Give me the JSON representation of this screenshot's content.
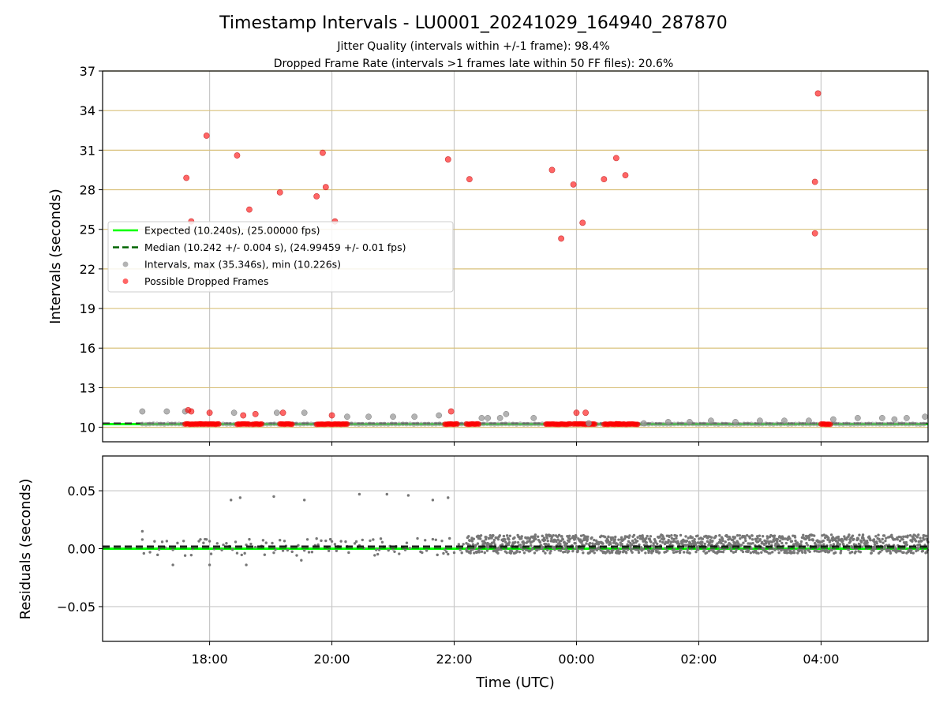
{
  "figure": {
    "title": "Timestamp Intervals - LU0001_20241029_164940_287870",
    "subtitle_1": "Jitter Quality (intervals within +/-1 frame): 98.4%",
    "subtitle_2": "Dropped Frame Rate (intervals >1 frames late within 50 FF files): 20.6%"
  },
  "chart_data": [
    {
      "type": "scatter",
      "ylabel": "Intervals (seconds)",
      "xlabel": "",
      "xlim_hours": [
        16.25,
        29.75
      ],
      "ylim": [
        8.9,
        37
      ],
      "yticks": [
        10,
        13,
        16,
        19,
        22,
        25,
        28,
        31,
        34,
        37
      ],
      "ytick_labels": [
        "10",
        "13",
        "16",
        "19",
        "22",
        "25",
        "28",
        "31",
        "34",
        "37"
      ],
      "grid": "horizontal goldenrod lines and vertical grey lines",
      "legend_position": "center-left",
      "legend": [
        {
          "label": "Expected (10.240s), (25.00000 fps)",
          "color": "#00ff00",
          "style": "solid"
        },
        {
          "label": "Median (10.242 +/- 0.004 s), (24.99459 +/- 0.01 fps)",
          "color": "#006400",
          "style": "dashed"
        },
        {
          "label": "Intervals, max (35.346s), min (10.226s)",
          "color": "#808080",
          "style": "marker"
        },
        {
          "label": "Possible Dropped Frames",
          "color": "#ff0000",
          "style": "marker"
        }
      ],
      "expected_value": 10.24,
      "median_value": 10.242,
      "median_line_color": "#333333",
      "series": [
        {
          "name": "Intervals, max (35.346s), min (10.226s)",
          "color": "#999999",
          "points": [
            [
              16.9,
              11.2
            ],
            [
              17.3,
              11.2
            ],
            [
              17.6,
              11.2
            ],
            [
              18.4,
              11.1
            ],
            [
              19.1,
              11.1
            ],
            [
              19.55,
              11.1
            ],
            [
              20.25,
              10.8
            ],
            [
              20.6,
              10.8
            ],
            [
              21.0,
              10.8
            ],
            [
              21.35,
              10.8
            ],
            [
              21.75,
              10.9
            ],
            [
              22.45,
              10.7
            ],
            [
              22.55,
              10.7
            ],
            [
              22.75,
              10.7
            ],
            [
              22.85,
              11.0
            ],
            [
              23.3,
              10.7
            ],
            [
              24.2,
              10.3
            ],
            [
              25.1,
              10.3
            ],
            [
              25.5,
              10.4
            ],
            [
              25.85,
              10.4
            ],
            [
              26.2,
              10.5
            ],
            [
              26.6,
              10.4
            ],
            [
              27.0,
              10.5
            ],
            [
              27.4,
              10.5
            ],
            [
              27.8,
              10.5
            ],
            [
              28.2,
              10.6
            ],
            [
              28.6,
              10.7
            ],
            [
              29.0,
              10.7
            ],
            [
              29.2,
              10.6
            ],
            [
              29.4,
              10.7
            ],
            [
              29.7,
              10.8
            ]
          ]
        },
        {
          "name": "Possible Dropped Frames",
          "color": "#ff0000",
          "points": [
            [
              17.62,
              28.9
            ],
            [
              17.65,
              11.3
            ],
            [
              17.7,
              25.6
            ],
            [
              17.7,
              11.2
            ],
            [
              17.95,
              32.1
            ],
            [
              18.0,
              11.1
            ],
            [
              18.45,
              30.6
            ],
            [
              18.55,
              10.9
            ],
            [
              18.65,
              26.5
            ],
            [
              18.75,
              11.0
            ],
            [
              19.15,
              27.8
            ],
            [
              19.2,
              11.1
            ],
            [
              19.75,
              27.5
            ],
            [
              19.85,
              30.8
            ],
            [
              19.9,
              28.2
            ],
            [
              20.0,
              10.9
            ],
            [
              20.05,
              25.6
            ],
            [
              21.9,
              30.3
            ],
            [
              21.95,
              11.2
            ],
            [
              22.25,
              28.8
            ],
            [
              23.6,
              29.5
            ],
            [
              23.75,
              24.3
            ],
            [
              23.95,
              28.4
            ],
            [
              24.0,
              11.1
            ],
            [
              24.1,
              25.5
            ],
            [
              24.15,
              11.1
            ],
            [
              24.45,
              28.8
            ],
            [
              24.65,
              30.4
            ],
            [
              24.8,
              29.1
            ],
            [
              27.9,
              28.6
            ],
            [
              27.9,
              24.7
            ],
            [
              27.95,
              35.3
            ]
          ]
        }
      ],
      "dropped_frame_clusters": [
        [
          17.6,
          17.85
        ],
        [
          17.85,
          18.15
        ],
        [
          18.45,
          18.65
        ],
        [
          18.7,
          18.85
        ],
        [
          19.15,
          19.35
        ],
        [
          19.75,
          20.25
        ],
        [
          21.85,
          22.05
        ],
        [
          22.2,
          22.4
        ],
        [
          23.5,
          23.9
        ],
        [
          23.95,
          24.3
        ],
        [
          24.45,
          24.7
        ],
        [
          24.65,
          25.0
        ],
        [
          28.0,
          28.15
        ]
      ]
    },
    {
      "type": "scatter",
      "ylabel": "Residuals (seconds)",
      "xlabel": "Time (UTC)",
      "xlim_hours": [
        16.25,
        29.75
      ],
      "ylim": [
        -0.08,
        0.08
      ],
      "yticks": [
        0.05,
        0.0,
        -0.05
      ],
      "ytick_labels": [
        "0.05",
        "0.00",
        "−0.05"
      ],
      "xticks_hours": [
        18,
        20,
        22,
        24,
        26,
        28
      ],
      "xtick_labels": [
        "18:00",
        "20:00",
        "22:00",
        "00:00",
        "02:00",
        "04:00"
      ],
      "grid": "horizontal and vertical grey lines",
      "zero_line_color": "#00ff00",
      "median_residual": 0.002,
      "series": [
        {
          "name": "",
          "color": "#777777",
          "outliers": [
            [
              16.9,
              0.015
            ],
            [
              17.4,
              -0.014
            ],
            [
              18.0,
              -0.014
            ],
            [
              18.35,
              0.042
            ],
            [
              18.5,
              0.044
            ],
            [
              18.6,
              -0.014
            ],
            [
              19.05,
              0.045
            ],
            [
              19.55,
              0.042
            ],
            [
              20.45,
              0.047
            ],
            [
              20.9,
              0.047
            ],
            [
              21.25,
              0.046
            ],
            [
              21.65,
              0.042
            ],
            [
              21.9,
              0.044
            ],
            [
              19.5,
              -0.01
            ]
          ],
          "dense_bands": [
            {
              "from": 22.2,
              "to": 29.75,
              "low": -0.004,
              "high": 0.012
            },
            {
              "from": 16.9,
              "to": 22.2,
              "low": -0.006,
              "high": 0.009,
              "sparse": true
            }
          ]
        }
      ]
    }
  ]
}
